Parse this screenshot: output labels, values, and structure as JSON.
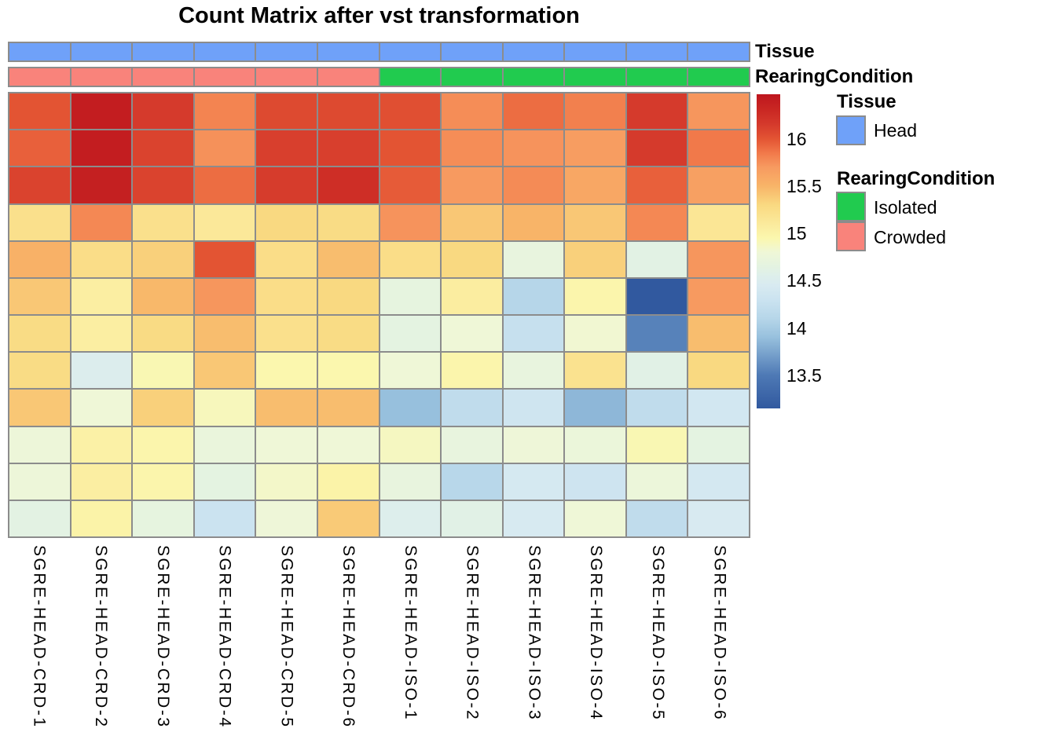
{
  "title": "Count Matrix after vst transformation",
  "annotation_rows": {
    "tissue_label": "Tissue",
    "rearing_label": "RearingCondition"
  },
  "legend": {
    "tissue_title": "Tissue",
    "head_label": "Head",
    "rearing_title": "RearingCondition",
    "isolated_label": "Isolated",
    "crowded_label": "Crowded"
  },
  "colors": {
    "head_blue": "#6FA1F9",
    "isolated_green": "#21CB4F",
    "crowded_salmon": "#F9837B",
    "grid_gray": "#8C8C8C",
    "background": "#FFFFFF"
  },
  "chart_data": {
    "type": "heatmap",
    "title": "Count Matrix after vst transformation",
    "columns": [
      "SGRE-HEAD-CRD-1",
      "SGRE-HEAD-CRD-2",
      "SGRE-HEAD-CRD-3",
      "SGRE-HEAD-CRD-4",
      "SGRE-HEAD-CRD-5",
      "SGRE-HEAD-CRD-6",
      "SGRE-HEAD-ISO-1",
      "SGRE-HEAD-ISO-2",
      "SGRE-HEAD-ISO-3",
      "SGRE-HEAD-ISO-4",
      "SGRE-HEAD-ISO-5",
      "SGRE-HEAD-ISO-6"
    ],
    "n_rows": 12,
    "row_labels_visible": false,
    "values": [
      [
        16.0,
        16.4,
        16.15,
        15.8,
        16.06,
        16.06,
        16.03,
        15.76,
        15.9,
        15.82,
        16.15,
        15.72
      ],
      [
        15.95,
        16.4,
        16.1,
        15.74,
        16.12,
        16.12,
        16.0,
        15.76,
        15.73,
        15.68,
        16.15,
        15.85
      ],
      [
        16.1,
        16.38,
        16.1,
        15.9,
        16.14,
        16.25,
        15.97,
        15.7,
        15.77,
        15.6,
        15.95,
        15.65
      ],
      [
        15.22,
        15.78,
        15.22,
        15.12,
        15.3,
        15.27,
        15.73,
        15.4,
        15.5,
        15.4,
        15.78,
        15.15
      ],
      [
        15.52,
        15.25,
        15.35,
        16.0,
        15.25,
        15.45,
        15.25,
        15.3,
        14.7,
        15.35,
        14.62,
        15.72
      ],
      [
        15.4,
        15.05,
        15.48,
        15.72,
        15.25,
        15.3,
        14.68,
        15.07,
        14.1,
        14.97,
        13.15,
        15.7
      ],
      [
        15.27,
        15.05,
        15.28,
        15.45,
        15.22,
        15.27,
        14.65,
        14.8,
        14.25,
        14.82,
        13.55,
        15.45
      ],
      [
        15.27,
        14.52,
        14.93,
        15.4,
        14.95,
        14.95,
        14.8,
        14.97,
        14.7,
        15.2,
        14.6,
        15.3
      ],
      [
        15.4,
        14.8,
        15.35,
        14.9,
        15.45,
        15.45,
        13.9,
        14.2,
        14.35,
        13.85,
        14.2,
        14.38
      ],
      [
        14.77,
        15.02,
        14.97,
        14.73,
        14.8,
        14.8,
        14.88,
        14.7,
        14.78,
        14.75,
        14.93,
        14.65
      ],
      [
        14.77,
        15.05,
        14.97,
        14.65,
        14.85,
        15.0,
        14.7,
        14.12,
        14.42,
        14.33,
        14.76,
        14.4
      ],
      [
        14.63,
        15.0,
        14.68,
        14.3,
        14.78,
        15.38,
        14.53,
        14.6,
        14.44,
        14.8,
        14.2,
        14.45
      ]
    ],
    "colorbar_range": [
      13.15,
      16.47
    ],
    "colorbar_ticks": [
      16,
      15.5,
      15,
      14.5,
      14,
      13.5
    ],
    "column_annotations": {
      "Tissue": [
        "Head",
        "Head",
        "Head",
        "Head",
        "Head",
        "Head",
        "Head",
        "Head",
        "Head",
        "Head",
        "Head",
        "Head"
      ],
      "RearingCondition": [
        "Crowded",
        "Crowded",
        "Crowded",
        "Crowded",
        "Crowded",
        "Crowded",
        "Isolated",
        "Isolated",
        "Isolated",
        "Isolated",
        "Isolated",
        "Isolated"
      ]
    },
    "annotation_colors": {
      "Head": "#6FA1F9",
      "Isolated": "#21CB4F",
      "Crowded": "#F9837B"
    },
    "palette_anchors": [
      [
        13.15,
        "#31599F"
      ],
      [
        13.5,
        "#4E79B5"
      ],
      [
        13.9,
        "#97C0DD"
      ],
      [
        14.1,
        "#B6D6E9"
      ],
      [
        14.3,
        "#CBE3F0"
      ],
      [
        14.45,
        "#D8EAF1"
      ],
      [
        14.55,
        "#DEEFEB"
      ],
      [
        14.65,
        "#E4F3E1"
      ],
      [
        14.8,
        "#EFF7D7"
      ],
      [
        14.95,
        "#FBF7AE"
      ],
      [
        15.1,
        "#FBEA9C"
      ],
      [
        15.3,
        "#F9D981"
      ],
      [
        15.5,
        "#F8B468"
      ],
      [
        15.7,
        "#F79A60"
      ],
      [
        15.85,
        "#F1794A"
      ],
      [
        16.0,
        "#E35433"
      ],
      [
        16.15,
        "#D53A2C"
      ],
      [
        16.3,
        "#CA2823"
      ],
      [
        16.47,
        "#BE161E"
      ]
    ]
  }
}
